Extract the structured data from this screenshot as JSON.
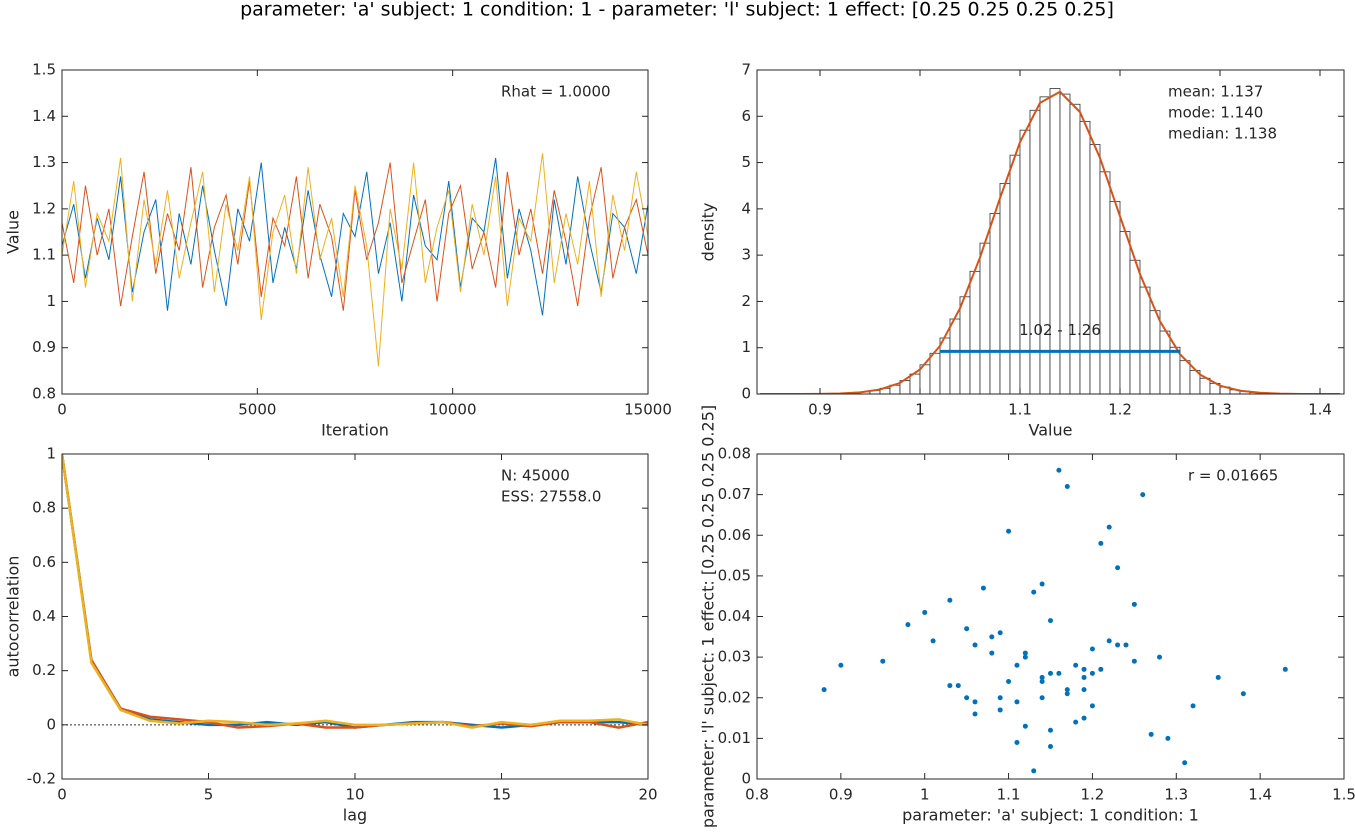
{
  "title": "parameter: 'a' subject: 1 condition: 1 - parameter: 'l' subject: 1 effect: [0.25 0.25 0.25 0.25]",
  "chart_data": [
    {
      "type": "line",
      "xlabel": "Iteration",
      "ylabel": "Value",
      "annotations": [
        "Rhat = 1.0000"
      ],
      "xlim": [
        0,
        15000
      ],
      "ylim": [
        0.8,
        1.5
      ],
      "xticks": [
        0,
        5000,
        10000,
        15000
      ],
      "yticks": [
        0.8,
        0.9,
        1,
        1.1,
        1.2,
        1.3,
        1.4,
        1.5
      ],
      "x": [
        0,
        300,
        600,
        900,
        1200,
        1500,
        1800,
        2100,
        2400,
        2700,
        3000,
        3300,
        3600,
        3900,
        4200,
        4500,
        4800,
        5100,
        5400,
        5700,
        6000,
        6300,
        6600,
        6900,
        7200,
        7500,
        7800,
        8100,
        8400,
        8700,
        9000,
        9300,
        9600,
        9900,
        10200,
        10500,
        10800,
        11100,
        11400,
        11700,
        12000,
        12300,
        12600,
        12900,
        13200,
        13500,
        13800,
        14100,
        14400,
        14700,
        15000
      ],
      "series": [
        {
          "color": "#0072bd",
          "values": [
            1.12,
            1.21,
            1.05,
            1.18,
            1.09,
            1.27,
            1.02,
            1.15,
            1.22,
            0.98,
            1.19,
            1.08,
            1.25,
            1.11,
            0.99,
            1.2,
            1.13,
            1.3,
            1.04,
            1.16,
            1.07,
            1.24,
            1.1,
            1.01,
            1.19,
            1.14,
            1.28,
            1.06,
            1.17,
            1.0,
            1.23,
            1.12,
            1.09,
            1.26,
            1.03,
            1.18,
            1.15,
            1.31,
            1.05,
            1.2,
            1.11,
            0.97,
            1.22,
            1.08,
            1.27,
            1.13,
            1.02,
            1.19,
            1.16,
            1.06,
            1.21
          ]
        },
        {
          "color": "#d95319",
          "values": [
            1.17,
            1.04,
            1.25,
            1.1,
            1.2,
            0.99,
            1.14,
            1.28,
            1.06,
            1.19,
            1.11,
            1.29,
            1.03,
            1.16,
            1.23,
            1.08,
            1.26,
            1.01,
            1.18,
            1.12,
            1.27,
            1.05,
            1.21,
            1.14,
            0.98,
            1.24,
            1.09,
            1.17,
            1.3,
            1.04,
            1.13,
            1.22,
            1.0,
            1.19,
            1.25,
            1.07,
            1.15,
            1.03,
            1.28,
            1.1,
            1.2,
            1.06,
            1.24,
            1.13,
            0.99,
            1.18,
            1.29,
            1.05,
            1.16,
            1.22,
            1.1
          ]
        },
        {
          "color": "#edb120",
          "values": [
            1.1,
            1.26,
            1.03,
            1.19,
            1.13,
            1.31,
            1.0,
            1.22,
            1.08,
            1.24,
            1.05,
            1.17,
            1.28,
            1.02,
            1.21,
            1.11,
            1.27,
            0.96,
            1.15,
            1.23,
            1.06,
            1.29,
            1.09,
            1.18,
            1.01,
            1.25,
            1.12,
            0.86,
            1.2,
            1.07,
            1.3,
            1.04,
            1.16,
            1.24,
            1.02,
            1.21,
            1.1,
            1.27,
            0.99,
            1.18,
            1.13,
            1.32,
            1.04,
            1.19,
            1.08,
            1.26,
            1.01,
            1.23,
            1.11,
            1.28,
            1.14
          ]
        }
      ]
    },
    {
      "type": "histogram",
      "xlabel": "Value",
      "ylabel": "density",
      "annotations": [
        "mean: 1.137",
        "mode: 1.140",
        "median: 1.138"
      ],
      "xlim": [
        0.837,
        1.424
      ],
      "ylim": [
        0,
        7
      ],
      "xticks": [
        0.9,
        1,
        1.1,
        1.2,
        1.3,
        1.4
      ],
      "yticks": [
        0,
        1,
        2,
        3,
        4,
        5,
        6,
        7
      ],
      "facecolor": "#ffffff",
      "edgecolor": "#333333",
      "bins": [
        0.92,
        0.93,
        0.94,
        0.95,
        0.96,
        0.97,
        0.98,
        0.99,
        1.0,
        1.01,
        1.02,
        1.03,
        1.04,
        1.05,
        1.06,
        1.07,
        1.08,
        1.09,
        1.1,
        1.11,
        1.12,
        1.13,
        1.14,
        1.15,
        1.16,
        1.17,
        1.18,
        1.19,
        1.2,
        1.21,
        1.22,
        1.23,
        1.24,
        1.25,
        1.26,
        1.27,
        1.28,
        1.29,
        1.3,
        1.31,
        1.32,
        1.33,
        1.34,
        1.35,
        1.36
      ],
      "values": [
        0.016,
        0.027,
        0.046,
        0.076,
        0.123,
        0.19,
        0.29,
        0.43,
        0.63,
        0.88,
        1.21,
        1.62,
        2.1,
        2.65,
        3.26,
        3.9,
        4.55,
        5.16,
        5.7,
        6.13,
        6.42,
        6.6,
        6.48,
        6.26,
        5.89,
        5.39,
        4.8,
        4.16,
        3.51,
        2.89,
        2.31,
        1.8,
        1.36,
        1.01,
        0.72,
        0.51,
        0.34,
        0.23,
        0.15,
        0.09,
        0.06,
        0.03,
        0.02,
        0.01
      ],
      "kde": {
        "color": "#d95319",
        "x": [
          0.84,
          0.86,
          0.88,
          0.9,
          0.92,
          0.94,
          0.96,
          0.98,
          1.0,
          1.02,
          1.04,
          1.06,
          1.08,
          1.1,
          1.12,
          1.14,
          1.16,
          1.18,
          1.2,
          1.22,
          1.24,
          1.26,
          1.28,
          1.3,
          1.32,
          1.34,
          1.36,
          1.38,
          1.4,
          1.42
        ],
        "values": [
          0,
          0,
          0,
          0.002,
          0.012,
          0.035,
          0.097,
          0.24,
          0.53,
          1.04,
          1.85,
          2.95,
          4.23,
          5.44,
          6.29,
          6.53,
          6.09,
          5.1,
          3.84,
          2.59,
          1.57,
          0.86,
          0.42,
          0.18,
          0.07,
          0.026,
          0.008,
          0,
          0,
          0
        ]
      },
      "interval": {
        "color": "#0072bd",
        "x": [
          1.02,
          1.26
        ],
        "y": 0.92,
        "label": "1.02 - 1.26"
      }
    },
    {
      "type": "line",
      "xlabel": "lag",
      "ylabel": "autocorrelation",
      "annotations": [
        "N: 45000",
        "ESS: 27558.0"
      ],
      "hline": 0,
      "xlim": [
        0,
        20
      ],
      "ylim": [
        -0.2,
        1
      ],
      "xticks": [
        0,
        5,
        10,
        15,
        20
      ],
      "yticks": [
        -0.2,
        0,
        0.2,
        0.4,
        0.6,
        0.8,
        1
      ],
      "x": [
        0,
        1,
        2,
        3,
        4,
        5,
        6,
        7,
        8,
        9,
        10,
        11,
        12,
        13,
        14,
        15,
        16,
        17,
        18,
        19,
        20
      ],
      "series": [
        {
          "color": "#0072bd",
          "values": [
            1,
            0.24,
            0.06,
            0.02,
            0.01,
            0,
            0,
            0.01,
            0,
            0.01,
            -0.01,
            0,
            0.01,
            0.01,
            0,
            -0.01,
            0,
            0.01,
            0.01,
            0.01,
            0
          ]
        },
        {
          "color": "#d95319",
          "values": [
            1,
            0.24,
            0.06,
            0.03,
            0.02,
            0.01,
            -0.01,
            -0.005,
            0.005,
            -0.01,
            -0.01,
            0,
            0.005,
            0.01,
            -0.005,
            0.005,
            -0.005,
            0.01,
            0.01,
            -0.01,
            0.01
          ]
        },
        {
          "color": "#edb120",
          "values": [
            1,
            0.23,
            0.055,
            0.015,
            0.005,
            0.015,
            0.01,
            0,
            0.005,
            0.015,
            0,
            0,
            0.005,
            0.01,
            -0.01,
            0.01,
            0,
            0.015,
            0.015,
            0.02,
            0
          ]
        }
      ]
    },
    {
      "type": "scatter",
      "xlabel": "parameter: 'a' subject: 1 condition: 1",
      "ylabel": "parameter: 'l' subject: 1 effect: [0.25 0.25 0.25 0.25]",
      "annotations": [
        "r = 0.01665"
      ],
      "color": "#0072bd",
      "xlim": [
        0.8,
        1.5
      ],
      "ylim": [
        0,
        0.08
      ],
      "xticks": [
        0.8,
        0.9,
        1,
        1.1,
        1.2,
        1.3,
        1.4,
        1.5
      ],
      "yticks": [
        0,
        0.01,
        0.02,
        0.03,
        0.04,
        0.05,
        0.06,
        0.07,
        0.08
      ],
      "x": [
        1.14,
        1.08,
        1.2,
        1.17,
        1.11,
        1.05,
        1.23,
        1.15,
        1.19,
        1.09,
        1.14,
        1.06,
        1.28,
        1.0,
        1.19,
        1.15,
        1.11,
        1.22,
        1.04,
        1.17,
        1.13,
        1.25,
        1.09,
        1.2,
        0.98,
        1.31,
        1.16,
        1.12,
        1.08,
        1.23,
        1.14,
        1.18,
        1.03,
        1.27,
        1.1,
        1.21,
        1.15,
        1.06,
        1.19,
        1.12,
        0.88,
        0.9,
        1.43,
        1.38,
        1.05,
        1.07,
        1.22,
        1.2,
        1.13,
        1.32,
        0.95,
        1.35,
        1.1,
        1.25,
        1.17,
        1.01,
        1.29,
        1.14,
        1.09,
        1.24,
        1.16,
        1.19,
        1.11,
        1.06,
        1.21,
        1.15,
        1.26,
        1.03,
        1.18,
        1.12
      ],
      "values": [
        0.025,
        0.031,
        0.018,
        0.022,
        0.028,
        0.02,
        0.033,
        0.012,
        0.027,
        0.036,
        0.024,
        0.019,
        0.03,
        0.041,
        0.015,
        0.026,
        0.009,
        0.034,
        0.023,
        0.021,
        0.046,
        0.029,
        0.017,
        0.032,
        0.038,
        0.004,
        0.026,
        0.013,
        0.035,
        0.052,
        0.02,
        0.028,
        0.044,
        0.011,
        0.024,
        0.027,
        0.039,
        0.016,
        0.025,
        0.03,
        0.022,
        0.028,
        0.027,
        0.021,
        0.037,
        0.047,
        0.062,
        0.026,
        0.002,
        0.018,
        0.029,
        0.025,
        0.061,
        0.043,
        0.072,
        0.034,
        0.01,
        0.048,
        0.02,
        0.033,
        0.076,
        0.022,
        0.019,
        0.033,
        0.058,
        0.008,
        0.07,
        0.023,
        0.014,
        0.031
      ]
    }
  ]
}
